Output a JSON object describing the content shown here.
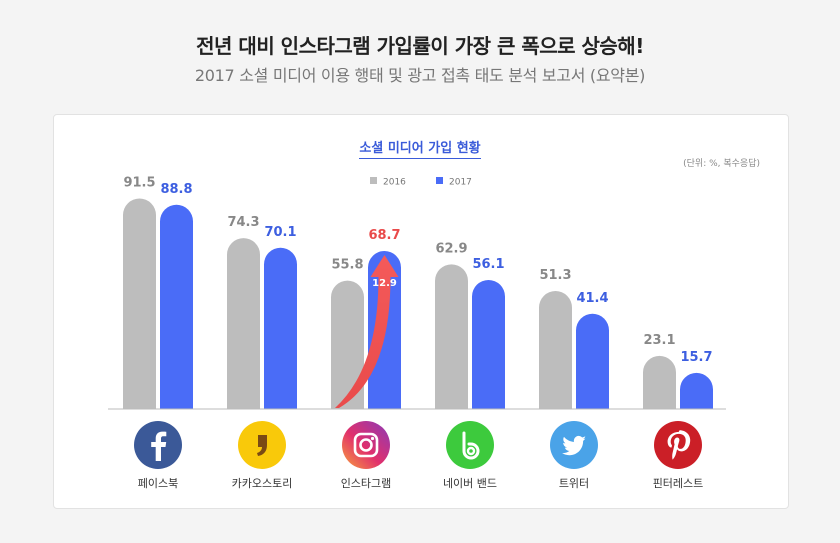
{
  "header": {
    "title": "전년 대비 인스타그램 가입률이 가장 큰 폭으로 상승해!",
    "subtitle": "2017 소셜 미디어 이용 행태 및 광고 접촉 태도 분석 보고서 (요약본)"
  },
  "chart_data": {
    "type": "bar",
    "title": "소셜 미디어 가입 현황",
    "unit_note": "(단위: %, 복수응답)",
    "categories": [
      "페이스북",
      "카카오스토리",
      "인스타그램",
      "네이버 밴드",
      "트위터",
      "핀터레스트"
    ],
    "series": [
      {
        "name": "2016",
        "values": [
          91.5,
          74.3,
          55.8,
          62.9,
          51.3,
          23.1
        ],
        "color": "#bdbdbd"
      },
      {
        "name": "2017",
        "values": [
          88.8,
          70.1,
          68.7,
          56.1,
          41.4,
          15.7
        ],
        "color": "#4a6cf7"
      }
    ],
    "highlight": {
      "category_index": 2,
      "change_label": "12.9",
      "value_color": "#e94b4b"
    },
    "label_color_2016": "#888888",
    "label_color_2017": "#3d5fe0",
    "ylim": [
      0,
      100
    ],
    "legend_position": "top-center",
    "grid": false
  },
  "icons": [
    "facebook-logo-icon",
    "kakaostory-logo-icon",
    "instagram-logo-icon",
    "naver-band-logo-icon",
    "twitter-logo-icon",
    "pinterest-logo-icon"
  ]
}
